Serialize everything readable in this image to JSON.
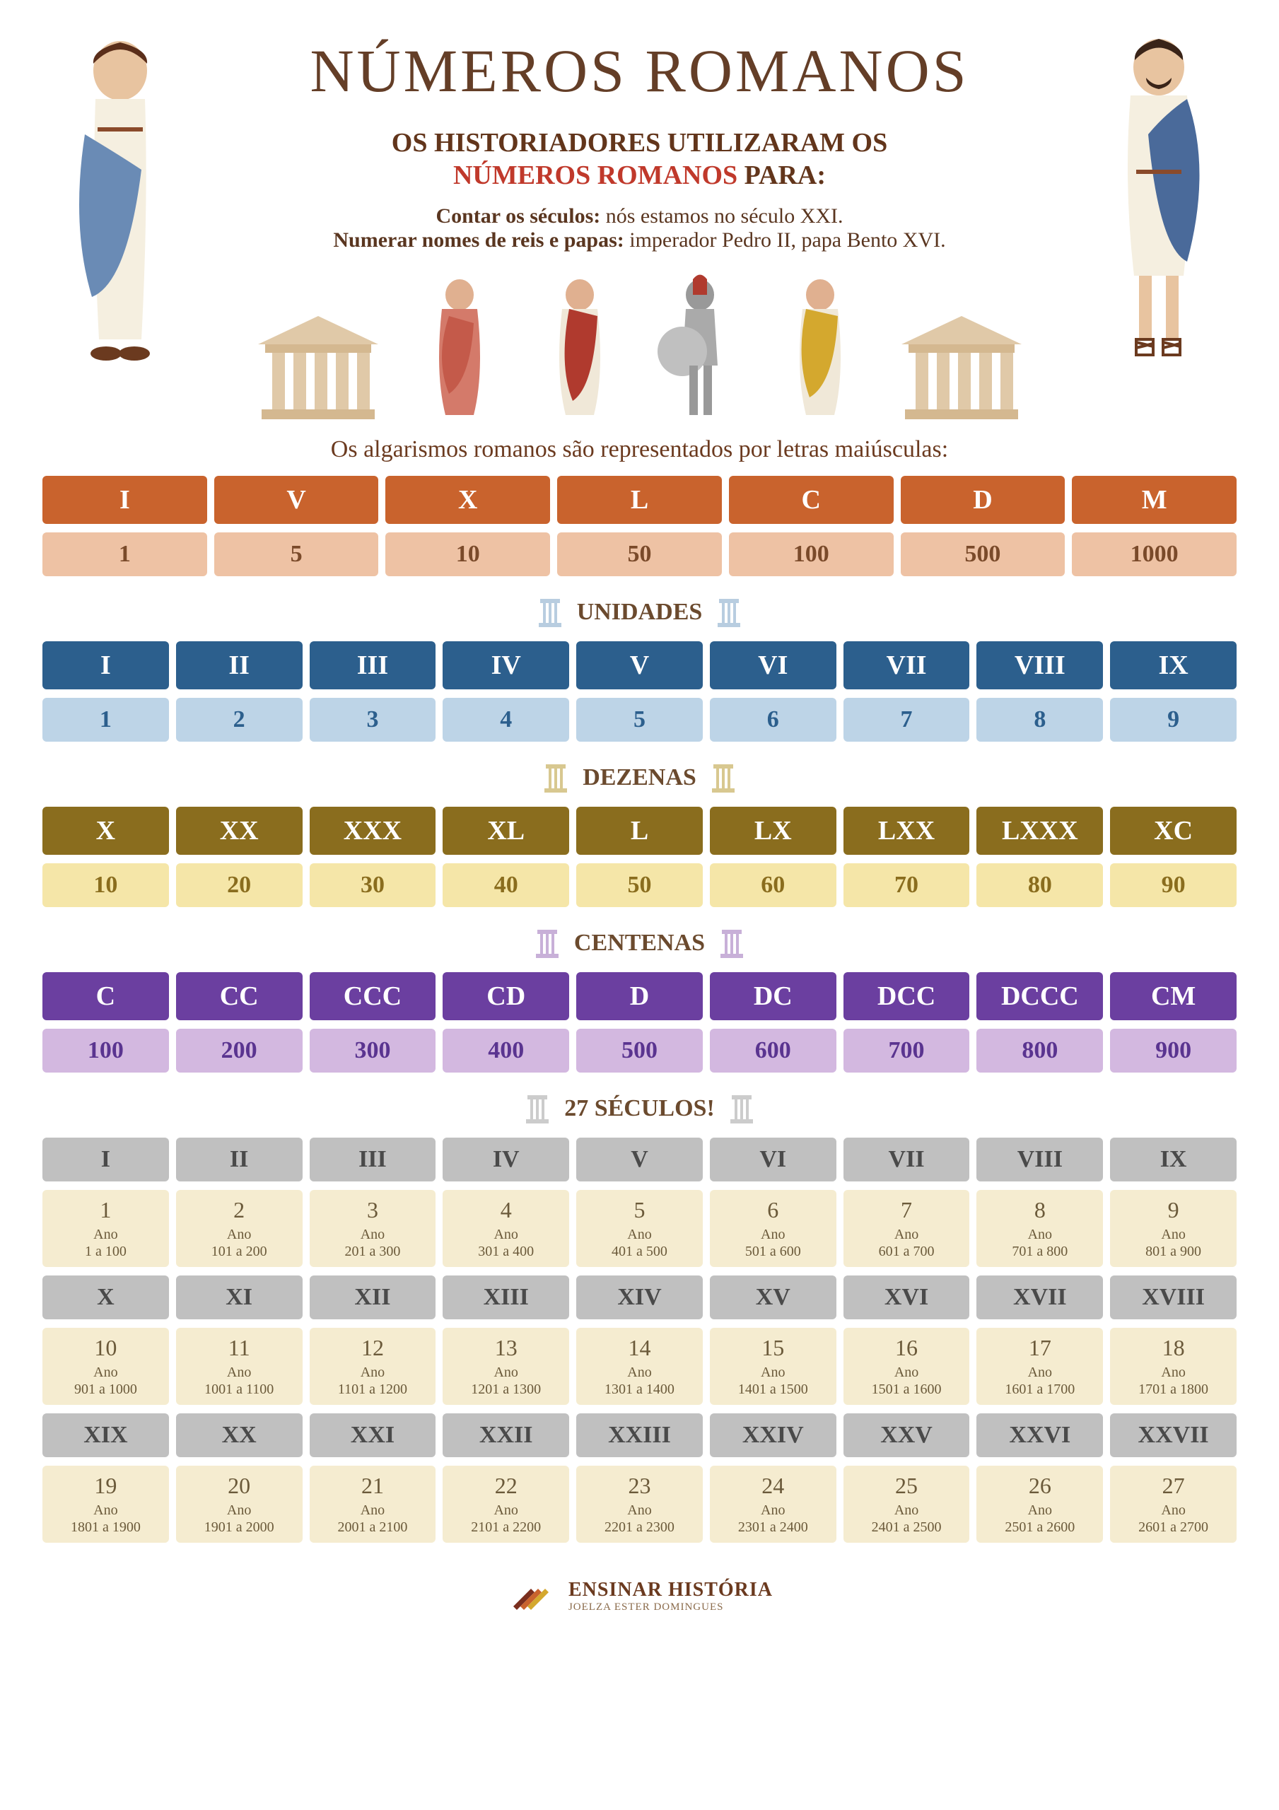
{
  "title": "NÚMEROS ROMANOS",
  "subtitle_prefix": "OS HISTORIADORES UTILIZARAM OS",
  "subtitle_highlight": "NÚMEROS ROMANOS",
  "subtitle_suffix": "PARA:",
  "usage1_bold": "Contar os séculos:",
  "usage1_rest": " nós estamos no século XXI.",
  "usage2_bold": "Numerar nomes de reis e papas:",
  "usage2_rest": " imperador Pedro II, papa Bento XVI.",
  "intro_line": "Os algarismos romanos são representados por letras maiúsculas:",
  "colors": {
    "title": "#643e27",
    "highlight": "#c0392b",
    "basics_dark": "#c9632d",
    "basics_light": "#eec2a4",
    "uni_dark": "#2c5f8d",
    "uni_light": "#bdd4e7",
    "dez_dark": "#8a6d1e",
    "dez_light": "#f5e6a8",
    "cen_dark": "#6b3fa0",
    "cen_light": "#d3b8e0",
    "sec_dark": "#c0c0c0",
    "sec_light": "#f5ecd0"
  },
  "basics": {
    "romans": [
      "I",
      "V",
      "X",
      "L",
      "C",
      "D",
      "M"
    ],
    "values": [
      "1",
      "5",
      "10",
      "50",
      "100",
      "500",
      "1000"
    ]
  },
  "sections": {
    "unidades": {
      "title": "UNIDADES",
      "romans": [
        "I",
        "II",
        "III",
        "IV",
        "V",
        "VI",
        "VII",
        "VIII",
        "IX"
      ],
      "values": [
        "1",
        "2",
        "3",
        "4",
        "5",
        "6",
        "7",
        "8",
        "9"
      ]
    },
    "dezenas": {
      "title": "DEZENAS",
      "romans": [
        "X",
        "XX",
        "XXX",
        "XL",
        "L",
        "LX",
        "LXX",
        "LXXX",
        "XC"
      ],
      "values": [
        "10",
        "20",
        "30",
        "40",
        "50",
        "60",
        "70",
        "80",
        "90"
      ]
    },
    "centenas": {
      "title": "CENTENAS",
      "romans": [
        "C",
        "CC",
        "CCC",
        "CD",
        "D",
        "DC",
        "DCC",
        "DCCC",
        "CM"
      ],
      "values": [
        "100",
        "200",
        "300",
        "400",
        "500",
        "600",
        "700",
        "800",
        "900"
      ]
    }
  },
  "seculos": {
    "title": "27 SÉCULOS!",
    "ano_label": "Ano",
    "items": [
      {
        "r": "I",
        "n": "1",
        "range": "1 a 100"
      },
      {
        "r": "II",
        "n": "2",
        "range": "101 a 200"
      },
      {
        "r": "III",
        "n": "3",
        "range": "201 a 300"
      },
      {
        "r": "IV",
        "n": "4",
        "range": "301 a 400"
      },
      {
        "r": "V",
        "n": "5",
        "range": "401 a 500"
      },
      {
        "r": "VI",
        "n": "6",
        "range": "501 a 600"
      },
      {
        "r": "VII",
        "n": "7",
        "range": "601 a 700"
      },
      {
        "r": "VIII",
        "n": "8",
        "range": "701 a 800"
      },
      {
        "r": "IX",
        "n": "9",
        "range": "801 a 900"
      },
      {
        "r": "X",
        "n": "10",
        "range": "901 a 1000"
      },
      {
        "r": "XI",
        "n": "11",
        "range": "1001 a 1100"
      },
      {
        "r": "XII",
        "n": "12",
        "range": "1101 a 1200"
      },
      {
        "r": "XIII",
        "n": "13",
        "range": "1201 a 1300"
      },
      {
        "r": "XIV",
        "n": "14",
        "range": "1301 a 1400"
      },
      {
        "r": "XV",
        "n": "15",
        "range": "1401 a 1500"
      },
      {
        "r": "XVI",
        "n": "16",
        "range": "1501 a 1600"
      },
      {
        "r": "XVII",
        "n": "17",
        "range": "1601 a 1700"
      },
      {
        "r": "XVIII",
        "n": "18",
        "range": "1701 a 1800"
      },
      {
        "r": "XIX",
        "n": "19",
        "range": "1801 a 1900"
      },
      {
        "r": "XX",
        "n": "20",
        "range": "1901 a 2000"
      },
      {
        "r": "XXI",
        "n": "21",
        "range": "2001 a 2100"
      },
      {
        "r": "XXII",
        "n": "22",
        "range": "2101 a 2200"
      },
      {
        "r": "XXIII",
        "n": "23",
        "range": "2201 a 2300"
      },
      {
        "r": "XXIV",
        "n": "24",
        "range": "2301 a 2400"
      },
      {
        "r": "XXV",
        "n": "25",
        "range": "2401 a 2500"
      },
      {
        "r": "XXVI",
        "n": "26",
        "range": "2501 a 2600"
      },
      {
        "r": "XXVII",
        "n": "27",
        "range": "2601 a 2700"
      }
    ]
  },
  "footer": {
    "brand": "ENSINAR HISTÓRIA",
    "author": "JOELZA ESTER DOMINGUES"
  }
}
